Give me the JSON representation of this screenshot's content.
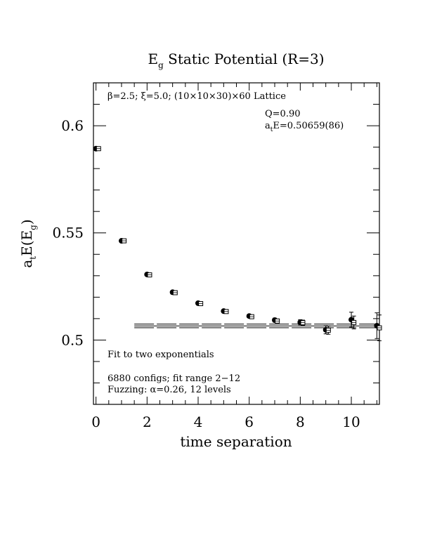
{
  "chart_data": {
    "type": "scatter",
    "title_main": "E",
    "title_sub": "g",
    "title_rest": " Static Potential (R=3)",
    "xlabel": "time separation",
    "ylabel_parts": [
      "a",
      "t",
      "E(E",
      "g",
      ")"
    ],
    "xlim": [
      -0.1,
      11.1
    ],
    "ylim": [
      0.47,
      0.62
    ],
    "xticks": [
      0,
      2,
      4,
      6,
      8,
      10
    ],
    "xtick_labels": [
      "0",
      "2",
      "4",
      "6",
      "8",
      "10"
    ],
    "yticks": [
      0.5,
      0.55,
      0.6
    ],
    "ytick_labels": [
      "0.5",
      "0.55",
      "0.6"
    ],
    "series": [
      {
        "marker": "filled-circle",
        "x": [
          0,
          1,
          2,
          3,
          4,
          5,
          6,
          7,
          8,
          9,
          10,
          11
        ],
        "y": [
          0.5893,
          0.5463,
          0.5306,
          0.5223,
          0.5172,
          0.5135,
          0.5112,
          0.5093,
          0.5083,
          0.5048,
          0.5095,
          0.5067
        ],
        "err": [
          0.0003,
          0.0003,
          0.0004,
          0.0004,
          0.0005,
          0.0006,
          0.0007,
          0.0009,
          0.0012,
          0.0019,
          0.0035,
          0.006
        ]
      },
      {
        "marker": "open-square",
        "x": [
          0.1,
          1.1,
          2.1,
          3.1,
          4.1,
          5.1,
          6.1,
          7.1,
          8.1,
          9.1,
          10.1,
          11.1
        ],
        "y": [
          0.5893,
          0.5463,
          0.5304,
          0.5221,
          0.517,
          0.5133,
          0.5109,
          0.5089,
          0.5081,
          0.5046,
          0.5082,
          0.5057
        ],
        "err": [
          0.0003,
          0.0003,
          0.0004,
          0.0004,
          0.0005,
          0.0006,
          0.0007,
          0.0009,
          0.0012,
          0.0019,
          0.003,
          0.006
        ]
      }
    ],
    "fit": {
      "x_range": [
        1.5,
        11.1
      ],
      "central": 0.50659,
      "error": 0.00086
    },
    "annotations": {
      "top_left_prefix": "β=2.5; ξ=5.0; (10×10×30)×60 Lattice",
      "q_value": "Q=0.90",
      "energy_prefix": "a",
      "energy_sub": "t",
      "energy_rest": "E=0.50659(86)",
      "fit_desc": "Fit to two exponentials",
      "configs": "6880 configs; fit range 2−12",
      "fuzzing": "Fuzzing: α=0.26, 12 levels"
    },
    "grid": false,
    "legend": "none"
  }
}
